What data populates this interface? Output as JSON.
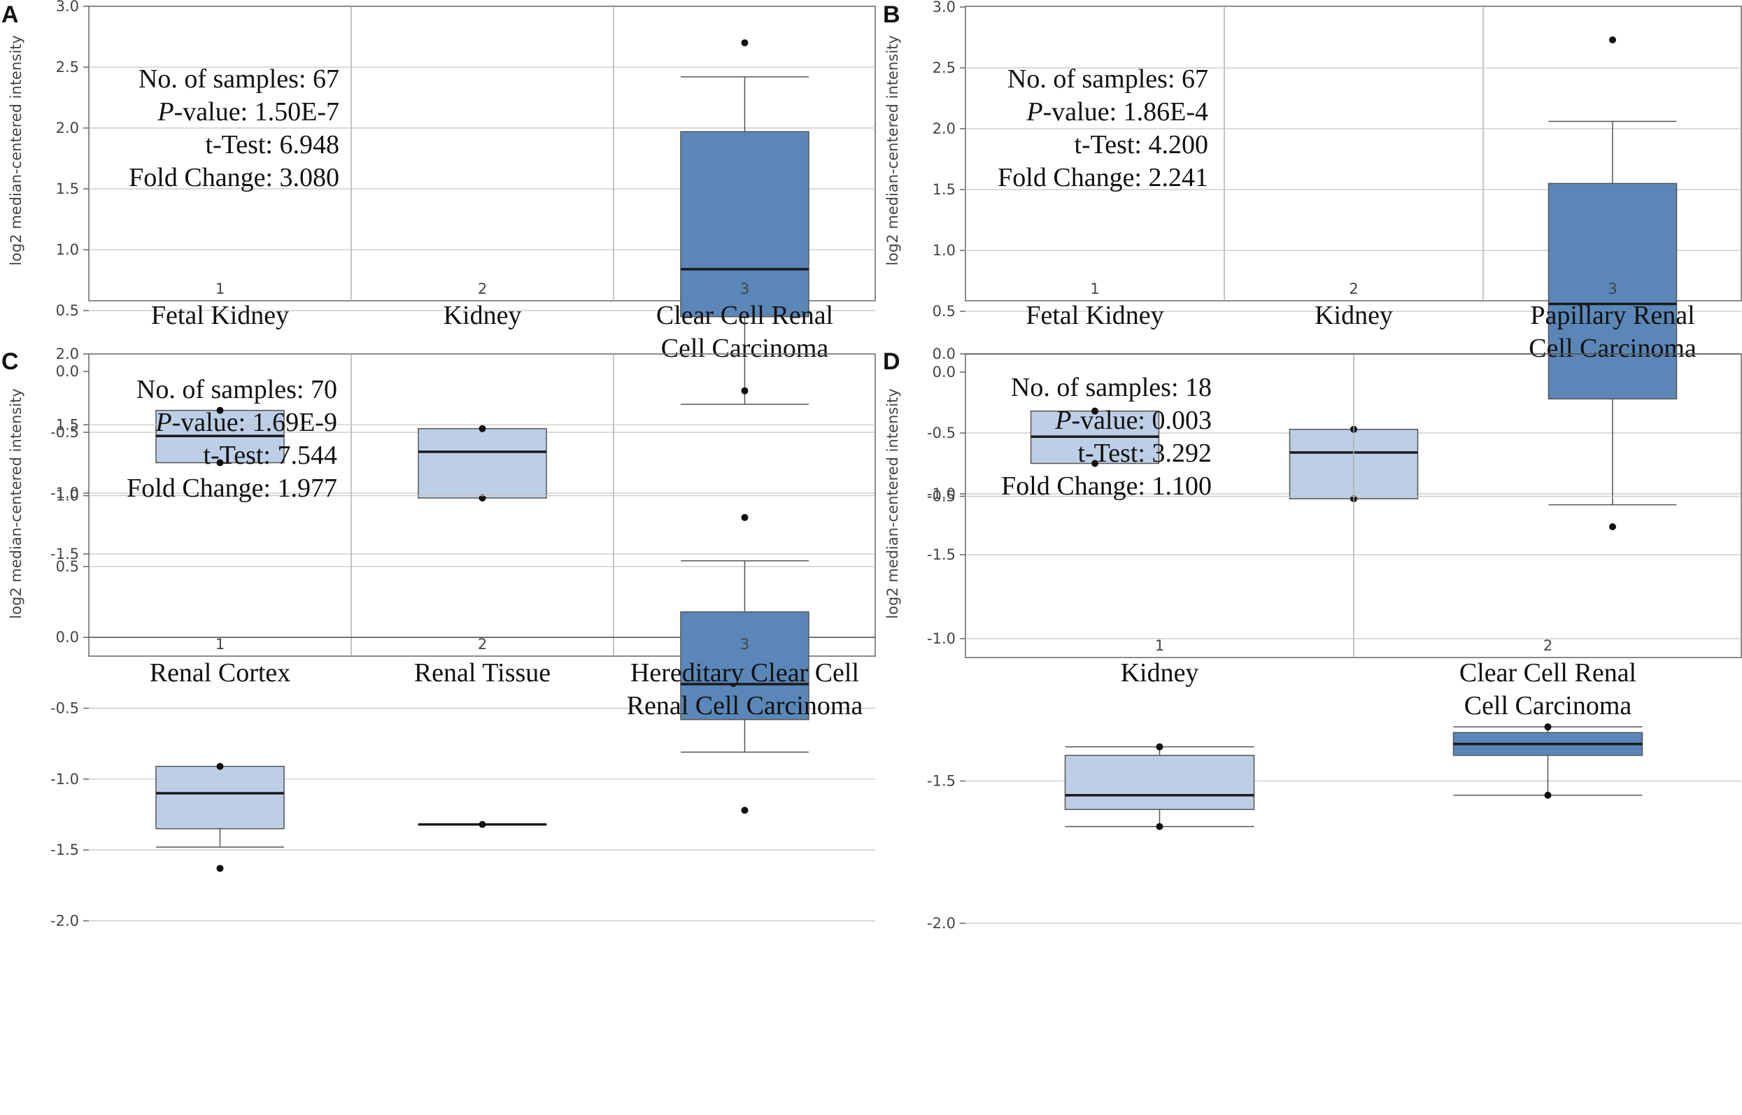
{
  "chart_data": [
    {
      "panel": "A",
      "type": "box",
      "ylabel": "log2 median-centered intensity",
      "ylim": [
        -1.85,
        3.0
      ],
      "yticks": [
        "3.0",
        "2.5",
        "2.0",
        "1.5",
        "1.0",
        "0.5",
        "0.0",
        "-0.5",
        "-1.0",
        "-1.5"
      ],
      "stats": {
        "samples_label": "No. of samples:",
        "samples": "67",
        "p_label": "P",
        "p_suffix": "-value:",
        "p_value": "1.50E-7",
        "t_label": "t-Test:",
        "t_value": "6.948",
        "fc_label": "Fold Change:",
        "fc_value": "3.080"
      },
      "groups": [
        {
          "index": "1",
          "label_lines": [
            "Fetal Kidney"
          ],
          "min": -0.75,
          "q1": -0.75,
          "median": -0.53,
          "q3": -0.32,
          "max": -0.32,
          "fliers": [
            -0.32,
            -0.75
          ],
          "color": "#bccfe6"
        },
        {
          "index": "2",
          "label_lines": [
            "Kidney"
          ],
          "min": -1.04,
          "q1": -1.04,
          "median": -0.66,
          "q3": -0.47,
          "max": -0.47,
          "fliers": [
            -0.47,
            -1.04
          ],
          "color": "#bccfe6"
        },
        {
          "index": "3",
          "label_lines": [
            "Clear Cell Renal",
            "Cell Carcinoma"
          ],
          "min": -0.27,
          "q1": 0.45,
          "median": 0.84,
          "q3": 1.97,
          "max": 2.42,
          "fliers": [
            2.7,
            -1.2
          ],
          "color": "#5a87b8"
        }
      ]
    },
    {
      "panel": "B",
      "type": "box",
      "ylabel": "log2 median-centered intensity",
      "ylim": [
        -1.85,
        3.0
      ],
      "yticks": [
        "3.0",
        "2.5",
        "2.0",
        "1.5",
        "1.0",
        "0.5",
        "0.0",
        "-0.5",
        "-1.0",
        "-1.5"
      ],
      "stats": {
        "samples_label": "No. of samples:",
        "samples": "67",
        "p_label": "P",
        "p_suffix": "-value:",
        "p_value": "1.86E-4",
        "t_label": "t-Test:",
        "t_value": "4.200",
        "fc_label": "Fold Change:",
        "fc_value": "2.241"
      },
      "groups": [
        {
          "index": "1",
          "label_lines": [
            "Fetal Kidney"
          ],
          "min": -0.75,
          "q1": -0.75,
          "median": -0.53,
          "q3": -0.32,
          "max": -0.32,
          "fliers": [
            -0.32,
            -0.75
          ],
          "color": "#bccfe6"
        },
        {
          "index": "2",
          "label_lines": [
            "Kidney"
          ],
          "min": -1.04,
          "q1": -1.04,
          "median": -0.66,
          "q3": -0.47,
          "max": -0.47,
          "fliers": [
            -0.47,
            -1.04
          ],
          "color": "#bccfe6"
        },
        {
          "index": "3",
          "label_lines": [
            "Papillary Renal",
            "Cell Carcinoma"
          ],
          "min": -1.09,
          "q1": -0.22,
          "median": 0.56,
          "q3": 1.55,
          "max": 2.06,
          "fliers": [
            2.73,
            -1.27
          ],
          "color": "#5a87b8"
        }
      ]
    },
    {
      "panel": "C",
      "type": "box",
      "ylabel": "log2 median-centered intensity",
      "ylim": [
        -2.25,
        2.0
      ],
      "yticks": [
        "2.0",
        "1.5",
        "1.0",
        "0.5",
        "0.0",
        "-0.5",
        "-1.0",
        "-1.5",
        "-2.0"
      ],
      "stats": {
        "samples_label": "No. of samples:",
        "samples": "70",
        "p_label": "P",
        "p_suffix": "-value:",
        "p_value": "1.69E-9",
        "t_label": "t-Test:",
        "t_value": "7.544",
        "fc_label": "Fold Change:",
        "fc_value": "1.977"
      },
      "groups": [
        {
          "index": "1",
          "label_lines": [
            "Renal Cortex"
          ],
          "min": -1.48,
          "q1": -1.35,
          "median": -1.1,
          "q3": -0.91,
          "max": -0.91,
          "fliers": [
            -0.91,
            -1.63
          ],
          "color": "#bccfe6"
        },
        {
          "index": "2",
          "label_lines": [
            "Renal Tissue"
          ],
          "min": -1.32,
          "q1": -1.32,
          "median": -1.32,
          "q3": -1.32,
          "max": -1.32,
          "fliers": [
            -1.32
          ],
          "color": "#bccfe6"
        },
        {
          "index": "3",
          "label_lines": [
            "Hereditary Clear Cell",
            "Renal Cell Carcinoma"
          ],
          "min": -0.81,
          "q1": -0.58,
          "median": -0.33,
          "q3": 0.18,
          "max": 0.54,
          "fliers": [
            1.74,
            -1.22
          ],
          "color": "#5a87b8"
        }
      ]
    },
    {
      "panel": "D",
      "type": "box",
      "ylabel": "log2 median-centered intensity",
      "ylim": [
        -2.13,
        0.0
      ],
      "yticks": [
        "0.0",
        "-0.5",
        "-1.0",
        "-1.5",
        "-2.0"
      ],
      "stats": {
        "samples_label": "No. of samples:",
        "samples": "18",
        "p_label": "P",
        "p_suffix": "-value:",
        "p_value": "0.003",
        "t_label": "t-Test:",
        "t_value": "3.292",
        "fc_label": "Fold Change:",
        "fc_value": "1.100"
      },
      "groups": [
        {
          "index": "1",
          "label_lines": [
            "Kidney"
          ],
          "min": -1.66,
          "q1": -1.6,
          "median": -1.55,
          "q3": -1.41,
          "max": -1.38,
          "fliers": [
            -1.38,
            -1.66
          ],
          "color": "#bccfe6"
        },
        {
          "index": "2",
          "label_lines": [
            "Clear Cell Renal",
            "Cell Carcinoma"
          ],
          "min": -1.55,
          "q1": -1.41,
          "median": -1.37,
          "q3": -1.33,
          "max": -1.31,
          "fliers": [
            -1.31,
            -1.55
          ],
          "color": "#5a87b8"
        }
      ]
    }
  ]
}
